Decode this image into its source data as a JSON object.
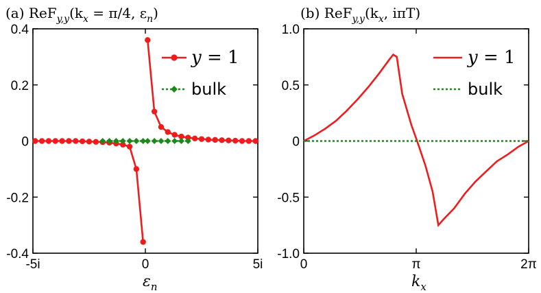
{
  "chart_data": [
    {
      "type": "line",
      "title": "(a) ReF_{y,y}(k_x = π/4, ε_n)",
      "title_text": "(a) ReF",
      "title_sub": "y,y",
      "title_args": "(k",
      "title_args_sub": "x",
      "title_args_rest": " = π/4, ε",
      "title_args_sub2": "n",
      "title_close": ")",
      "xlabel": "ε",
      "xlabel_sub": "n",
      "ylabel": "",
      "xlim": [
        -5,
        5
      ],
      "ylim": [
        -0.4,
        0.4
      ],
      "xticks": [
        {
          "value": -5,
          "label": "-5i"
        },
        {
          "value": 0,
          "label": "0"
        },
        {
          "value": 5,
          "label": "5i"
        }
      ],
      "yticks": [
        {
          "value": 0.4,
          "label": "0.4"
        },
        {
          "value": 0.2,
          "label": "0.2"
        },
        {
          "value": 0,
          "label": "0"
        },
        {
          "value": -0.2,
          "label": "-0.2"
        },
        {
          "value": -0.4,
          "label": "-0.4"
        }
      ],
      "legend": [
        {
          "name": "y = 1",
          "name_var": "y",
          "name_rest": " = 1",
          "color": "#ee1c1c",
          "marker": "circle",
          "style": "solid"
        },
        {
          "name": "bulk",
          "color": "#1a8a1a",
          "marker": "diamond",
          "style": "dotted"
        }
      ],
      "series": [
        {
          "name": "y = 1",
          "color": "#ee1c1c",
          "marker": "circle",
          "x": [
            -4.9,
            -4.6,
            -4.3,
            -4.0,
            -3.7,
            -3.4,
            -3.1,
            -2.8,
            -2.5,
            -2.2,
            -1.9,
            -1.6,
            -1.3,
            -1.0,
            -0.7,
            -0.4,
            -0.1
          ],
          "y": [
            0,
            0,
            0,
            0,
            0,
            0,
            0,
            -0.001,
            -0.002,
            -0.003,
            -0.004,
            -0.006,
            -0.009,
            -0.013,
            -0.02,
            -0.1,
            -0.36
          ]
        },
        {
          "name": "y = 1 (ε>0)",
          "color": "#ee1c1c",
          "marker": "circle",
          "x": [
            0.1,
            0.4,
            0.7,
            1.0,
            1.3,
            1.6,
            1.9,
            2.2,
            2.5,
            2.8,
            3.1,
            3.4,
            3.7,
            4.0,
            4.3,
            4.6,
            4.9
          ],
          "y": [
            0.36,
            0.105,
            0.05,
            0.032,
            0.022,
            0.016,
            0.012,
            0.009,
            0.007,
            0.005,
            0.004,
            0.003,
            0.002,
            0.001,
            0,
            0,
            0
          ]
        },
        {
          "name": "bulk",
          "color": "#1a8a1a",
          "marker": "diamond",
          "x": [
            -1.9,
            -1.6,
            -1.3,
            -1.0,
            -0.7,
            -0.4,
            -0.1,
            0.1,
            0.4,
            0.7,
            1.0,
            1.3,
            1.6,
            1.9
          ],
          "y": [
            0,
            0,
            0,
            0,
            0,
            0,
            0,
            0,
            0,
            0,
            0,
            0,
            0,
            0
          ]
        }
      ]
    },
    {
      "type": "line",
      "title": "(b) ReF_{y,y}(k_x, iπT)",
      "title_text": "(b) ReF",
      "title_sub": "y,y",
      "title_args": "(k",
      "title_args_sub": "x",
      "title_args_rest": ", iπT)",
      "xlabel": "k",
      "xlabel_sub": "x",
      "ylabel": "",
      "xlim": [
        0,
        6.2832
      ],
      "ylim": [
        -1.0,
        1.0
      ],
      "xticks": [
        {
          "value": 0,
          "label": "0"
        },
        {
          "value": 3.1416,
          "label": "π"
        },
        {
          "value": 6.2832,
          "label": "2π"
        }
      ],
      "yticks": [
        {
          "value": 1.0,
          "label": "1.0"
        },
        {
          "value": 0.5,
          "label": "0.5"
        },
        {
          "value": 0,
          "label": "0"
        },
        {
          "value": -0.5,
          "label": "-0.5"
        },
        {
          "value": -1.0,
          "label": "-1.0"
        }
      ],
      "legend": [
        {
          "name": "y = 1",
          "name_var": "y",
          "name_rest": " = 1",
          "color": "#ee1c1c",
          "style": "solid"
        },
        {
          "name": "bulk",
          "color": "#1a8a1a",
          "style": "dotted"
        }
      ],
      "series": [
        {
          "name": "y = 1",
          "color": "#ee1c1c",
          "x": [
            0,
            0.3,
            0.6,
            0.9,
            1.2,
            1.5,
            1.8,
            2.1,
            2.4,
            2.5,
            2.6,
            2.75,
            3.0,
            3.2,
            3.4,
            3.6,
            3.76,
            3.9,
            4.2,
            4.5,
            4.8,
            5.1,
            5.4,
            5.7,
            6.0,
            6.2832
          ],
          "y": [
            0,
            0.05,
            0.11,
            0.18,
            0.27,
            0.37,
            0.48,
            0.6,
            0.73,
            0.77,
            0.75,
            0.42,
            0.15,
            -0.03,
            -0.22,
            -0.45,
            -0.75,
            -0.7,
            -0.6,
            -0.47,
            -0.36,
            -0.27,
            -0.18,
            -0.12,
            -0.05,
            0
          ]
        },
        {
          "name": "bulk",
          "color": "#1a8a1a",
          "dotted": true,
          "x": [
            0,
            6.2832
          ],
          "y": [
            0,
            0
          ]
        }
      ]
    }
  ]
}
